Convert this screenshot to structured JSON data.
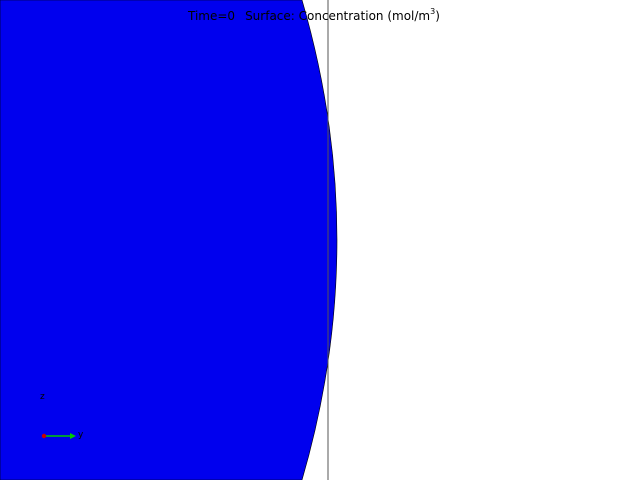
{
  "title": {
    "time_label": "Time=0",
    "plot_label": "Surface: Concentration (mol/m",
    "unit_exponent": "3",
    "unit_close": ")"
  },
  "triad": {
    "z_label": "z",
    "y_label": "y",
    "y_axis_color": "#00cc00",
    "origin_color": "#cc0000"
  },
  "surface": {
    "fill_color": "#0000ee"
  }
}
